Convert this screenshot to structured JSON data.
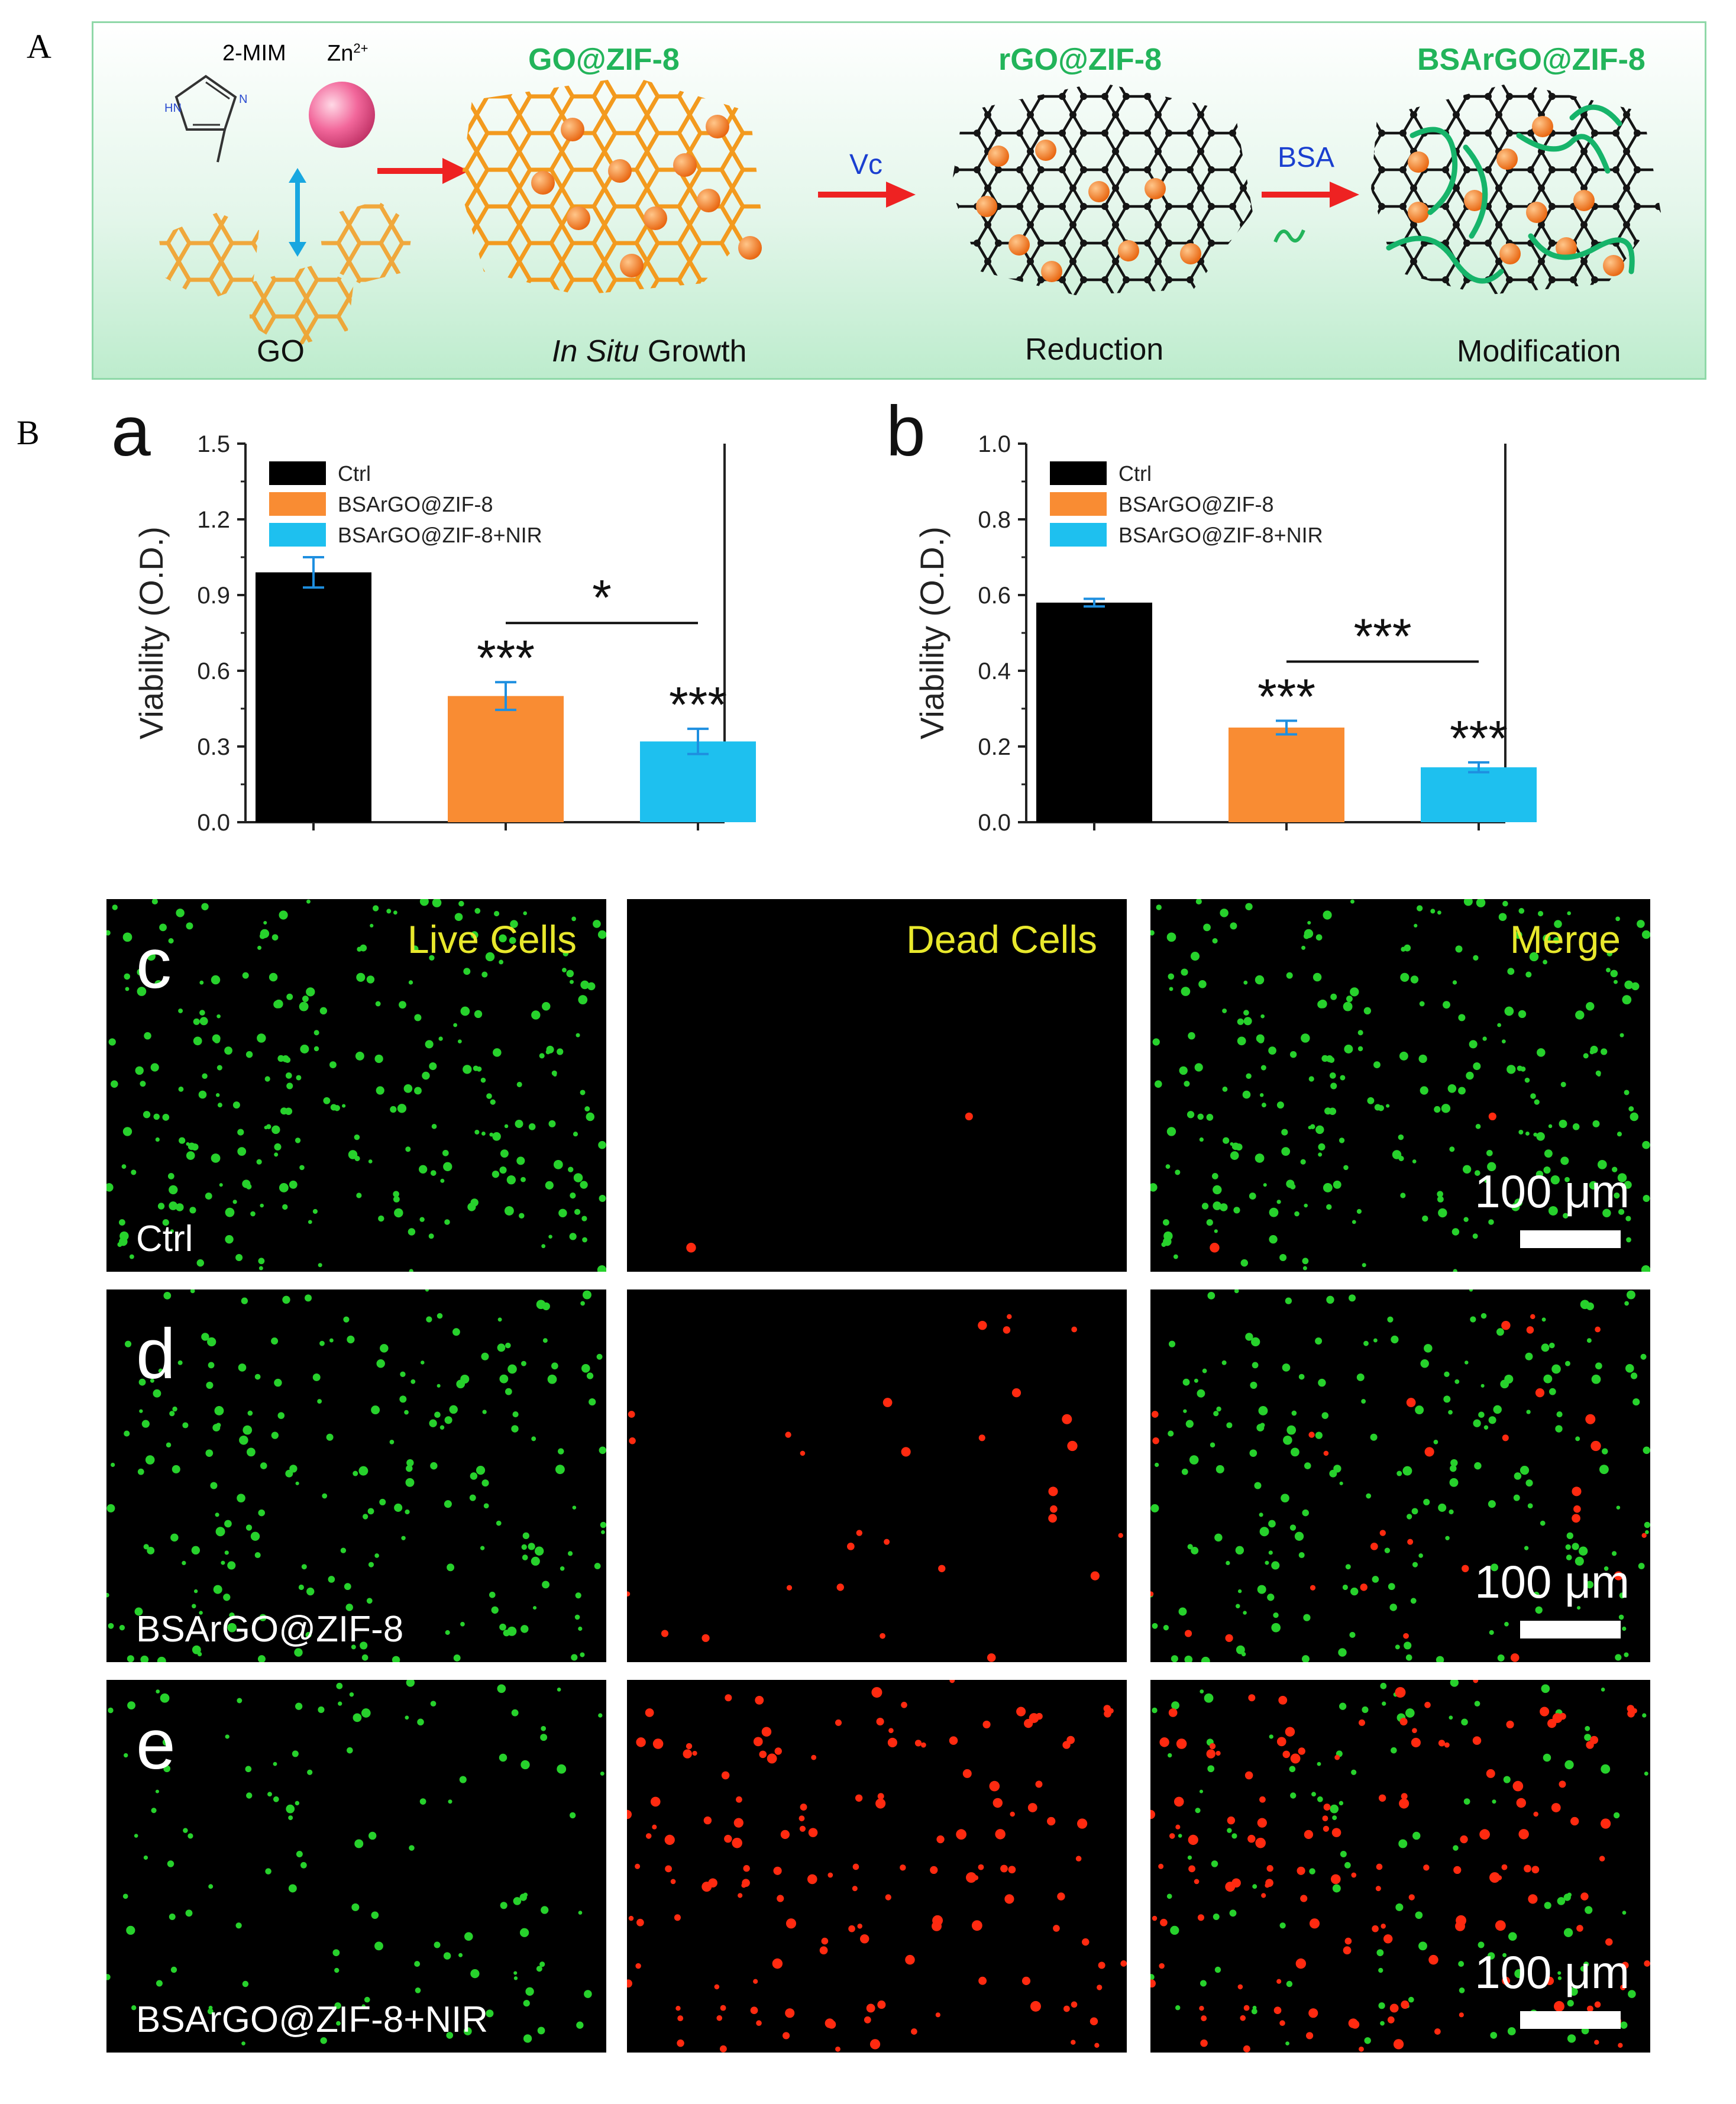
{
  "figure": {
    "panel_A_label": "A",
    "panel_B_label": "B"
  },
  "scheme": {
    "mim_label": "2-MIM",
    "zn_label": "Zn",
    "zn_sup": "2+",
    "go_label": "GO",
    "stage1_title": "GO@ZIF-8",
    "stage1_caption_italic": "In Situ",
    "stage1_caption_rest": " Growth",
    "stage2_title": "rGO@ZIF-8",
    "stage2_caption": "Reduction",
    "stage3_title": "BSArGO@ZIF-8",
    "stage3_caption": "Modification",
    "arrow2_label": "Vc",
    "arrow3_label": "BSA",
    "colors": {
      "title_green": "#22b45a",
      "arrow_red": "#ee2222",
      "label_blue": "#1a3fd0",
      "zif_orange": "#f47a1f"
    }
  },
  "charts_text": {
    "a": {
      "letter": "a",
      "yticks": [
        "0.0",
        "0.3",
        "0.6",
        "0.9",
        "1.2",
        "1.5"
      ],
      "sig_bracket": "*",
      "bar_stars": [
        "",
        "***",
        "***"
      ]
    },
    "b": {
      "letter": "b",
      "yticks": [
        "0.0",
        "0.2",
        "0.4",
        "0.6",
        "0.8",
        "1.0"
      ],
      "sig_bracket": "***",
      "bar_stars": [
        "",
        "***",
        "***"
      ]
    }
  },
  "chart_data": [
    {
      "type": "bar",
      "panel": "a",
      "ylabel": "Viability (O.D.)",
      "ylim": [
        0,
        1.5
      ],
      "grid": false,
      "legend_position": "top-left",
      "categories": [
        "Ctrl",
        "BSArGO@ZIF-8",
        "BSArGO@ZIF-8+NIR"
      ],
      "series": [
        {
          "name": "Ctrl",
          "value": 0.99,
          "error": 0.06,
          "color": "#000000"
        },
        {
          "name": "BSArGO@ZIF-8",
          "value": 0.5,
          "error": 0.055,
          "color": "#f98c33"
        },
        {
          "name": "BSArGO@ZIF-8+NIR",
          "value": 0.32,
          "error": 0.05,
          "color": "#1ec0ef"
        }
      ],
      "annotations": [
        "*",
        "***",
        "***"
      ]
    },
    {
      "type": "bar",
      "panel": "b",
      "ylabel": "Viability (O.D.)",
      "ylim": [
        0,
        1.0
      ],
      "grid": false,
      "legend_position": "top-left",
      "categories": [
        "Ctrl",
        "BSArGO@ZIF-8",
        "BSArGO@ZIF-8+NIR"
      ],
      "series": [
        {
          "name": "Ctrl",
          "value": 0.58,
          "error": 0.01,
          "color": "#000000"
        },
        {
          "name": "BSArGO@ZIF-8",
          "value": 0.25,
          "error": 0.018,
          "color": "#f98c33"
        },
        {
          "name": "BSArGO@ZIF-8+NIR",
          "value": 0.145,
          "error": 0.013,
          "color": "#1ec0ef"
        }
      ],
      "annotations": [
        "***",
        "***",
        "***"
      ]
    }
  ],
  "microscopy": {
    "column_titles": [
      "Live Cells",
      "Dead Cells",
      "Merge"
    ],
    "rows": [
      {
        "letter": "c",
        "label": "Ctrl",
        "live": 260,
        "dead": 2
      },
      {
        "letter": "d",
        "label": "BSArGO@ZIF-8",
        "live": 200,
        "dead": 30
      },
      {
        "letter": "e",
        "label": "BSArGO@ZIF-8+NIR",
        "live": 110,
        "dead": 140
      }
    ],
    "scale_bar": "100 μm",
    "colors": {
      "live": "#27d12c",
      "dead": "#ff2a10",
      "title_yellow": "#e8e82c"
    }
  }
}
